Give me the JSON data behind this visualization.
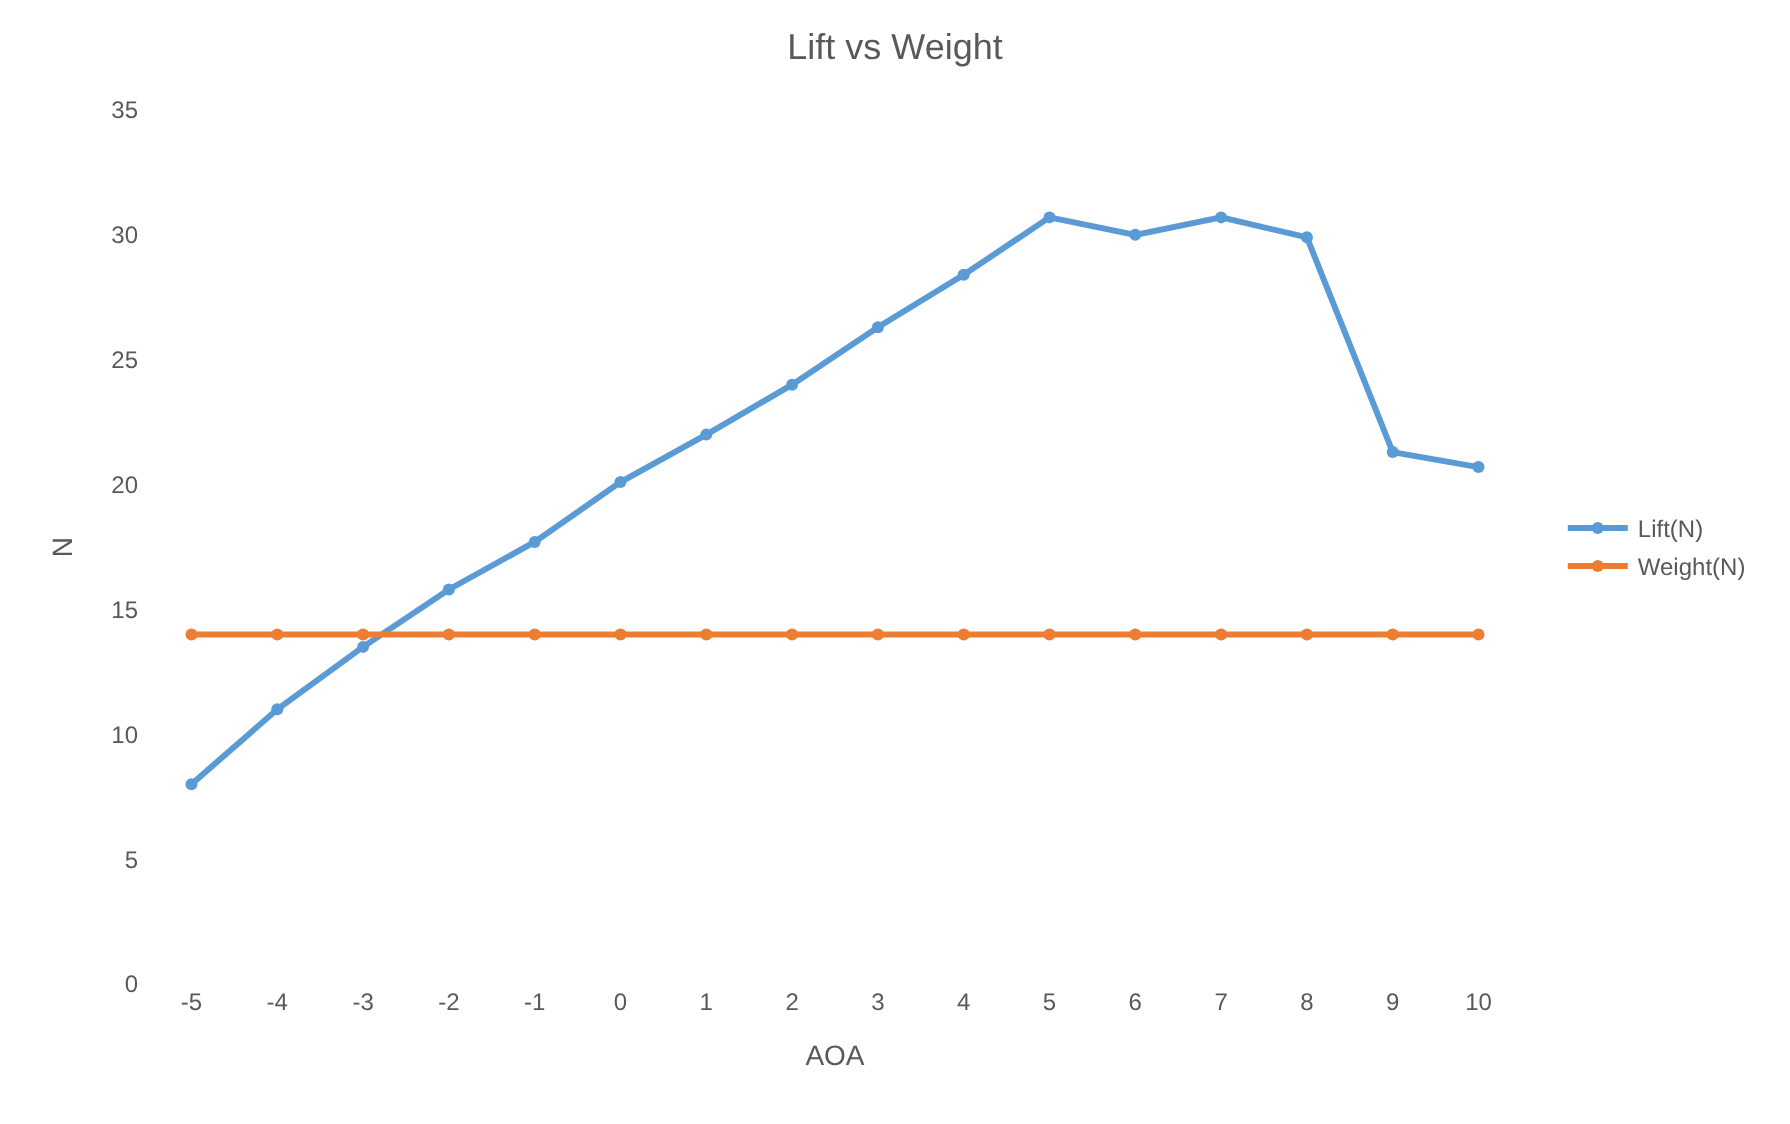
{
  "chart_data": {
    "type": "line",
    "title": "Lift vs Weight",
    "xlabel": "AOA",
    "ylabel": "N",
    "categories": [
      "-5",
      "-4",
      "-3",
      "-2",
      "-1",
      "0",
      "1",
      "2",
      "3",
      "4",
      "5",
      "6",
      "7",
      "8",
      "9",
      "10"
    ],
    "series": [
      {
        "name": "Lift(N)",
        "color": "#5b9bd5",
        "values": [
          8.0,
          11.0,
          13.5,
          15.8,
          17.7,
          20.1,
          22.0,
          24.0,
          26.3,
          28.4,
          30.7,
          30.0,
          30.7,
          29.9,
          21.3,
          20.7
        ]
      },
      {
        "name": "Weight(N)",
        "color": "#ed7d31",
        "values": [
          14,
          14,
          14,
          14,
          14,
          14,
          14,
          14,
          14,
          14,
          14,
          14,
          14,
          14,
          14,
          14
        ]
      }
    ],
    "ylim": [
      0,
      35
    ],
    "yticks": [
      0,
      5,
      10,
      15,
      20,
      25,
      30,
      35
    ],
    "grid": false,
    "legend": "right",
    "marker": "circle",
    "line_style": "solid"
  }
}
